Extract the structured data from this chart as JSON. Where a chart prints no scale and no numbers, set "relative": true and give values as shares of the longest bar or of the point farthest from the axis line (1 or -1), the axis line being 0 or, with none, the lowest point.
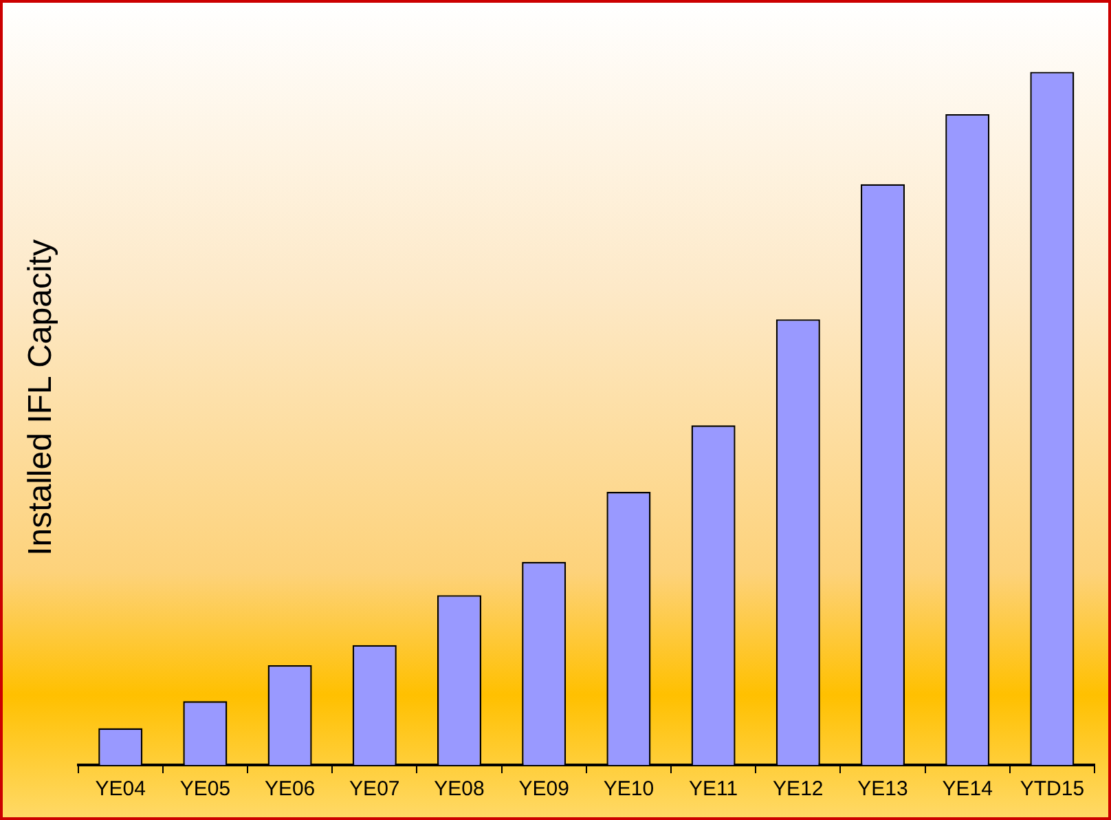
{
  "chart_data": {
    "type": "bar",
    "relative": true,
    "ylabel": "Installed IFL Capacity",
    "categories": [
      "YE04",
      "YE05",
      "YE06",
      "YE07",
      "YE08",
      "YE09",
      "YE10",
      "YE11",
      "YE12",
      "YE13",
      "YE14",
      "YTD15"
    ],
    "values": [
      0.053,
      0.092,
      0.144,
      0.173,
      0.245,
      0.293,
      0.394,
      0.49,
      0.643,
      0.838,
      0.939,
      1
    ],
    "color": "#9999ff",
    "grid": false,
    "legend": false
  }
}
